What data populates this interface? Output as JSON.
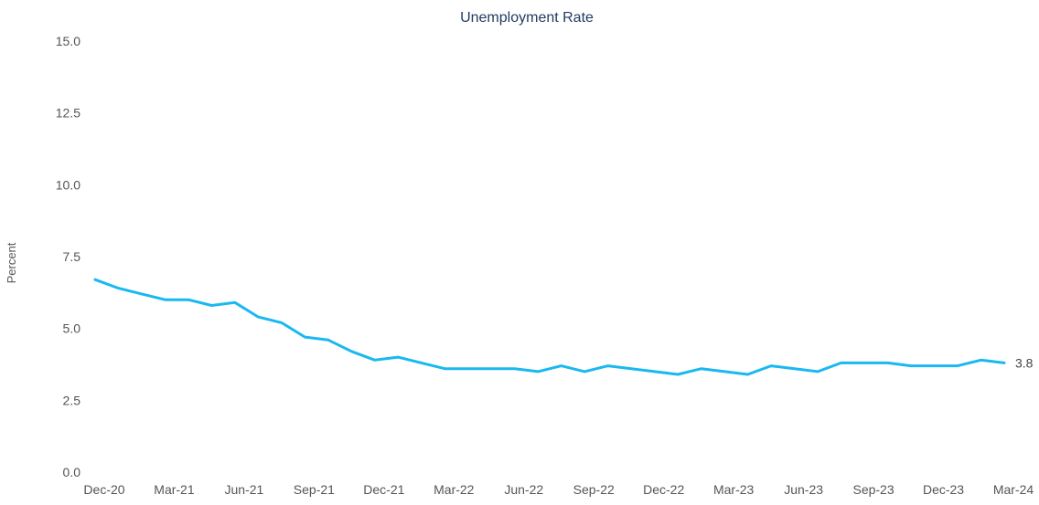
{
  "chart_data": {
    "type": "line",
    "title": "Unemployment Rate",
    "xlabel": "",
    "ylabel": "Percent",
    "ylim": [
      0,
      15
    ],
    "yticks": [
      "0.0",
      "2.5",
      "5.0",
      "7.5",
      "10.0",
      "12.5",
      "15.0"
    ],
    "x_tick_labels": [
      "Dec-20",
      "Mar-21",
      "Jun-21",
      "Sep-21",
      "Dec-21",
      "Mar-22",
      "Jun-22",
      "Sep-22",
      "Dec-22",
      "Mar-23",
      "Jun-23",
      "Sep-23",
      "Dec-23",
      "Mar-24"
    ],
    "grid": false,
    "line_color": "#1ab8f0",
    "series": [
      {
        "x": [
          "Dec-20",
          "Jan-21",
          "Feb-21",
          "Mar-21",
          "Apr-21",
          "May-21",
          "Jun-21",
          "Jul-21",
          "Aug-21",
          "Sep-21",
          "Oct-21",
          "Nov-21",
          "Dec-21",
          "Jan-22",
          "Feb-22",
          "Mar-22",
          "Apr-22",
          "May-22",
          "Jun-22",
          "Jul-22",
          "Aug-22",
          "Sep-22",
          "Oct-22",
          "Nov-22",
          "Dec-22",
          "Jan-23",
          "Feb-23",
          "Mar-23",
          "Apr-23",
          "May-23",
          "Jun-23",
          "Jul-23",
          "Aug-23",
          "Sep-23",
          "Oct-23",
          "Nov-23",
          "Dec-23",
          "Jan-24",
          "Feb-24",
          "Mar-24"
        ],
        "values": [
          6.7,
          6.4,
          6.2,
          6.0,
          6.0,
          5.8,
          5.9,
          5.4,
          5.2,
          4.7,
          4.6,
          4.2,
          3.9,
          4.0,
          3.8,
          3.6,
          3.6,
          3.6,
          3.6,
          3.5,
          3.7,
          3.5,
          3.7,
          3.6,
          3.5,
          3.4,
          3.6,
          3.5,
          3.4,
          3.7,
          3.6,
          3.5,
          3.8,
          3.8,
          3.8,
          3.7,
          3.7,
          3.7,
          3.9,
          3.8
        ]
      }
    ],
    "end_value_label": "3.8"
  }
}
